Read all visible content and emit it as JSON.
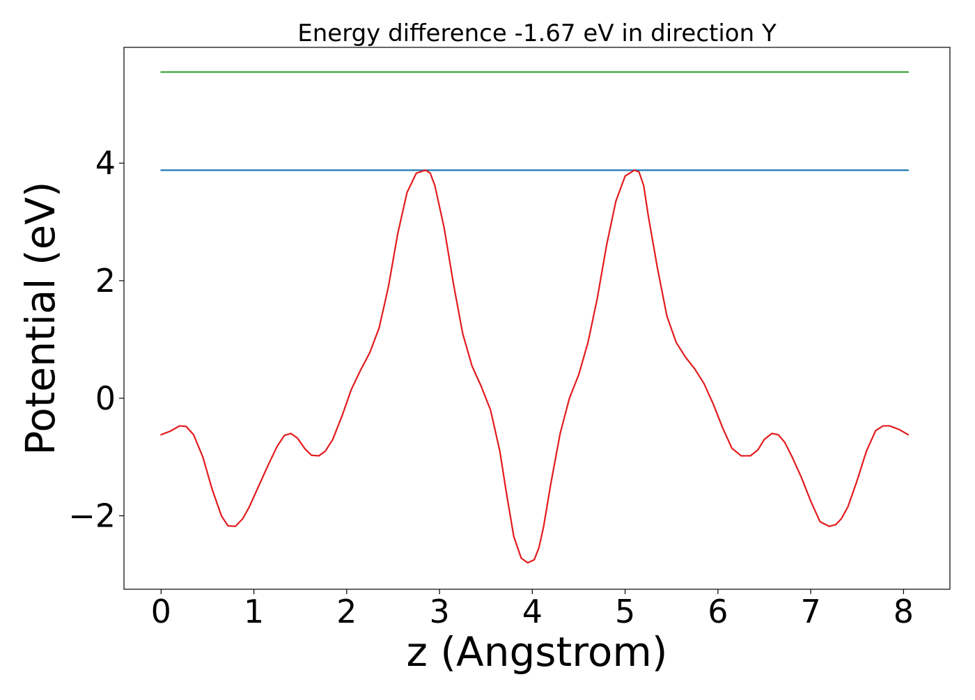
{
  "chart_data": {
    "type": "line",
    "title": "Energy difference -1.67 eV in direction Y",
    "xlabel": "z (Angstrom)",
    "ylabel": "Potential (eV)",
    "xlim": [
      -0.4,
      8.5
    ],
    "ylim": [
      -3.25,
      5.97
    ],
    "xticks": [
      0,
      1,
      2,
      3,
      4,
      5,
      6,
      7,
      8
    ],
    "xtick_labels": [
      "0",
      "1",
      "2",
      "3",
      "4",
      "5",
      "6",
      "7",
      "8"
    ],
    "yticks": [
      -2,
      0,
      2,
      4
    ],
    "ytick_labels": [
      "−2",
      "0",
      "2",
      "4"
    ],
    "grid": false,
    "series": [
      {
        "color": "#2ca02c",
        "x": [
          0,
          8.05
        ],
        "y": [
          5.55,
          5.55
        ]
      },
      {
        "color": "#1f77b4",
        "x": [
          0,
          8.05
        ],
        "y": [
          3.88,
          3.88
        ]
      },
      {
        "color": "#e31a1c",
        "x": [
          0,
          0.1,
          0.2,
          0.27,
          0.35,
          0.45,
          0.55,
          0.65,
          0.72,
          0.8,
          0.88,
          0.95,
          1.05,
          1.15,
          1.25,
          1.33,
          1.4,
          1.47,
          1.55,
          1.62,
          1.7,
          1.77,
          1.85,
          1.95,
          2.05,
          2.15,
          2.25,
          2.35,
          2.45,
          2.55,
          2.65,
          2.75,
          2.85,
          2.9,
          2.95,
          3.05,
          3.15,
          3.25,
          3.35,
          3.45,
          3.55,
          3.65,
          3.72,
          3.8,
          3.88,
          3.95,
          4.02,
          4.07,
          4.12,
          4.2,
          4.3,
          4.4,
          4.5,
          4.6,
          4.7,
          4.8,
          4.9,
          5.0,
          5.1,
          5.15,
          5.2,
          5.25,
          5.35,
          5.45,
          5.55,
          5.65,
          5.75,
          5.85,
          5.95,
          6.05,
          6.15,
          6.25,
          6.35,
          6.43,
          6.5,
          6.58,
          6.65,
          6.72,
          6.8,
          6.9,
          7.0,
          7.1,
          7.2,
          7.27,
          7.33,
          7.4,
          7.5,
          7.6,
          7.7,
          7.78,
          7.85,
          7.95,
          8.05
        ],
        "y": [
          -0.62,
          -0.56,
          -0.47,
          -0.48,
          -0.62,
          -1.0,
          -1.55,
          -2.0,
          -2.17,
          -2.18,
          -2.05,
          -1.85,
          -1.5,
          -1.15,
          -0.82,
          -0.63,
          -0.6,
          -0.68,
          -0.86,
          -0.97,
          -0.98,
          -0.9,
          -0.7,
          -0.3,
          0.15,
          0.48,
          0.78,
          1.2,
          1.9,
          2.8,
          3.5,
          3.83,
          3.88,
          3.83,
          3.62,
          2.9,
          1.95,
          1.1,
          0.55,
          0.2,
          -0.2,
          -0.9,
          -1.6,
          -2.35,
          -2.72,
          -2.8,
          -2.75,
          -2.55,
          -2.2,
          -1.45,
          -0.6,
          0.0,
          0.4,
          0.95,
          1.7,
          2.6,
          3.35,
          3.78,
          3.88,
          3.85,
          3.62,
          3.1,
          2.2,
          1.4,
          0.95,
          0.7,
          0.5,
          0.25,
          -0.1,
          -0.5,
          -0.85,
          -0.98,
          -0.98,
          -0.88,
          -0.7,
          -0.6,
          -0.62,
          -0.75,
          -1.0,
          -1.35,
          -1.75,
          -2.1,
          -2.18,
          -2.15,
          -2.05,
          -1.85,
          -1.4,
          -0.9,
          -0.55,
          -0.47,
          -0.47,
          -0.53,
          -0.62
        ]
      }
    ]
  }
}
